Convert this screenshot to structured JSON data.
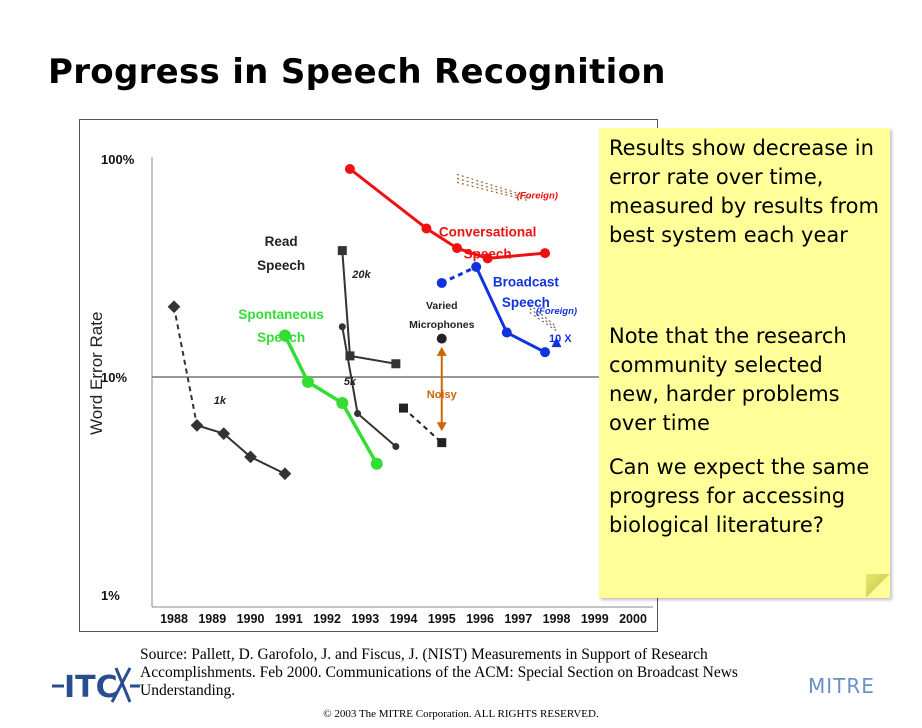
{
  "slide": {
    "title": "Progress in Speech Recognition",
    "note": [
      "Results show decrease in error rate over time, measured by results from best system each year",
      "Note that the research community selected new, harder problems over time",
      "Can we expect the same progress for accessing biological literature?"
    ],
    "source": "Source: Pallett, D. Garofolo, J. and Fiscus, J. (NIST) Measurements in Support of Research Accomplishments. Feb 2000.  Communications of the ACM:  Special Section on Broadcast News Understanding.",
    "copyright": "© 2003 The MITRE Corporation. ALL RIGHTS RESERVED.",
    "mitre_logo": "MITRE",
    "itc_logo": "ITC"
  },
  "chart_data": {
    "type": "line",
    "ylabel": "Word Error Rate",
    "yscale": "log",
    "ylim": [
      1,
      100
    ],
    "yticks": [
      "100%",
      "10%",
      "1%"
    ],
    "ytick_values": [
      100,
      10,
      1
    ],
    "xlim": [
      1988,
      2000
    ],
    "xticks": [
      "1988",
      "1989",
      "1990",
      "1991",
      "1992",
      "1993",
      "1994",
      "1995",
      "1996",
      "1997",
      "1998",
      "1999",
      "2000"
    ],
    "grid": "horizontal line at 10%",
    "series": [
      {
        "name": "Read Speech 1k",
        "color": "#333333",
        "marker": "diamond",
        "style": "dashed-then-solid",
        "points": [
          [
            1988.0,
            21
          ],
          [
            1988.6,
            6.0
          ],
          [
            1989.3,
            5.5
          ],
          [
            1990.0,
            4.3
          ],
          [
            1990.9,
            3.6
          ]
        ]
      },
      {
        "name": "Read Speech 20k",
        "color": "#333333",
        "marker": "square",
        "points": [
          [
            1992.4,
            38
          ],
          [
            1992.6,
            12.5
          ],
          [
            1993.8,
            11.5
          ]
        ]
      },
      {
        "name": "Read Speech 5k",
        "color": "#333333",
        "marker": "circle",
        "points": [
          [
            1992.4,
            17
          ],
          [
            1992.8,
            6.8
          ],
          [
            1993.8,
            4.8
          ]
        ]
      },
      {
        "name": "Spontaneous Speech",
        "color": "#33dd33",
        "marker": "circle",
        "points": [
          [
            1990.9,
            15.5
          ],
          [
            1991.5,
            9.5
          ],
          [
            1992.4,
            7.6
          ],
          [
            1993.3,
            4.0
          ]
        ]
      },
      {
        "name": "Conversational Speech",
        "color": "#ee1111",
        "marker": "circle",
        "points": [
          [
            1992.6,
            90
          ],
          [
            1994.6,
            48
          ],
          [
            1995.4,
            39
          ],
          [
            1996.2,
            35
          ],
          [
            1997.7,
            37
          ]
        ]
      },
      {
        "name": "Broadcast Speech",
        "color": "#1133dd",
        "marker": "circle",
        "style": "dashed-then-solid",
        "points": [
          [
            1995.0,
            27
          ],
          [
            1995.9,
            32
          ],
          [
            1996.7,
            16
          ],
          [
            1997.7,
            13
          ]
        ]
      },
      {
        "name": "Varied Microphones",
        "color": "#222222",
        "marker": "circle",
        "points": [
          [
            1995.0,
            15
          ]
        ]
      },
      {
        "name": "Noisy",
        "color": "#222222",
        "marker": "square",
        "style": "dashed",
        "points": [
          [
            1994.0,
            7.2
          ],
          [
            1995.0,
            5.0
          ]
        ]
      }
    ],
    "annotations": [
      {
        "text": "Read",
        "x": 1990.8,
        "y": 40,
        "color": "#222222"
      },
      {
        "text": "Speech",
        "x": 1990.8,
        "y": 31,
        "color": "#222222"
      },
      {
        "text": "Spontaneous",
        "x": 1990.8,
        "y": 18.5,
        "color": "#33dd33"
      },
      {
        "text": "Speech",
        "x": 1990.8,
        "y": 14.5,
        "color": "#33dd33"
      },
      {
        "text": "Conversational",
        "x": 1996.2,
        "y": 44,
        "color": "#ee1111"
      },
      {
        "text": "Speech",
        "x": 1996.2,
        "y": 35,
        "color": "#ee1111"
      },
      {
        "text": "Broadcast",
        "x": 1997.2,
        "y": 26,
        "color": "#1133dd"
      },
      {
        "text": "Speech",
        "x": 1997.2,
        "y": 21,
        "color": "#1133dd"
      },
      {
        "text": "Varied",
        "x": 1995.0,
        "y": 20.5,
        "color": "#222222"
      },
      {
        "text": "Microphones",
        "x": 1995.0,
        "y": 16.8,
        "color": "#222222"
      },
      {
        "text": "(Foreign)",
        "x": 1997.5,
        "y": 66,
        "color": "#ee1111"
      },
      {
        "text": "(Foreign)",
        "x": 1998.0,
        "y": 19.5,
        "color": "#1133dd"
      },
      {
        "text": "10 X",
        "x": 1998.1,
        "y": 14.5,
        "color": "#1133dd"
      },
      {
        "text": "Noisy",
        "x": 1995.0,
        "y": 8.0,
        "color": "#cc6600"
      },
      {
        "text": "1k",
        "x": 1989.2,
        "y": 7.5,
        "color": "#222222"
      },
      {
        "text": "20k",
        "x": 1992.9,
        "y": 28.5,
        "color": "#222222"
      },
      {
        "text": "5k",
        "x": 1992.6,
        "y": 9.2,
        "color": "#222222"
      }
    ],
    "colors": {
      "conversational": "#ee1111",
      "broadcast": "#1133dd",
      "spontaneous": "#33dd33",
      "read": "#333333",
      "noisy_arrow": "#cc6600"
    }
  }
}
